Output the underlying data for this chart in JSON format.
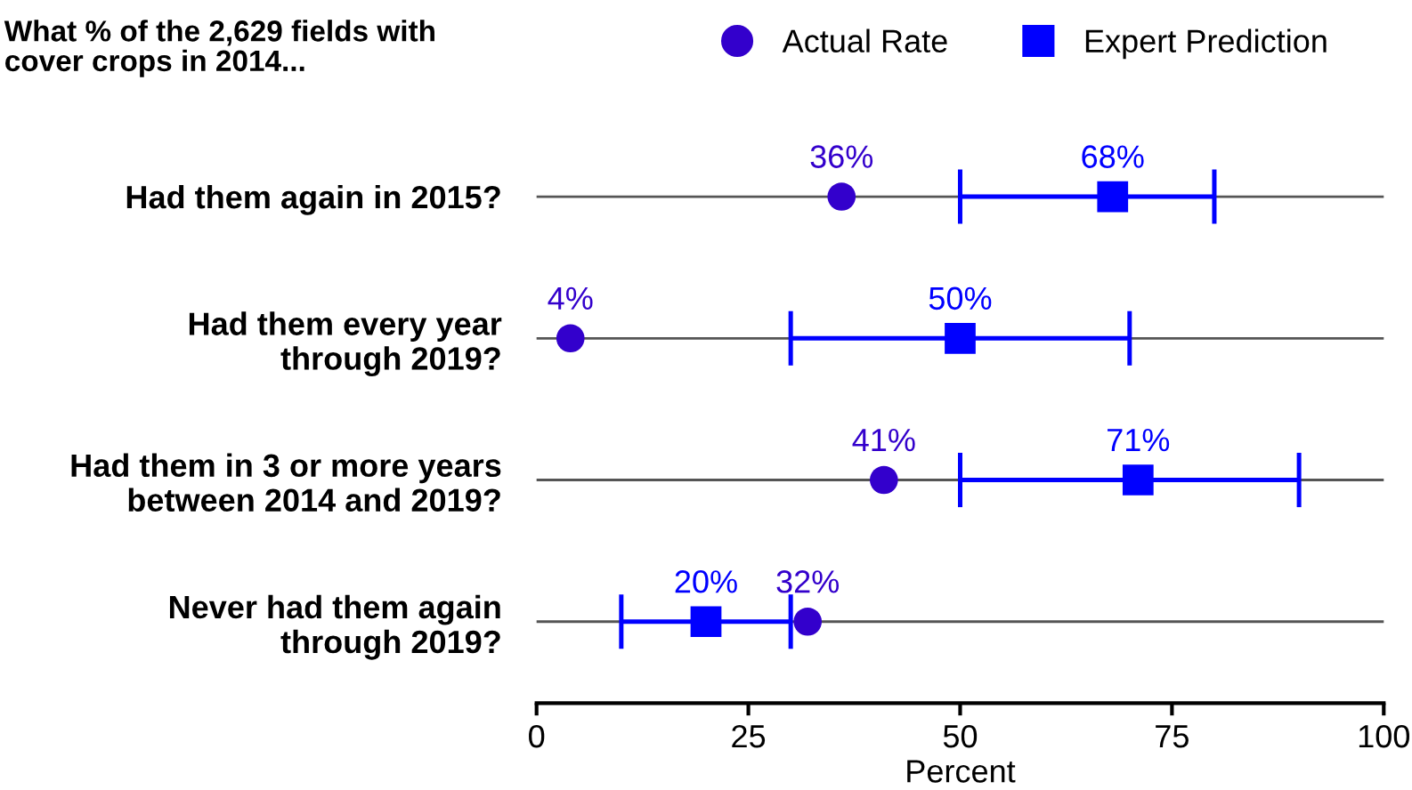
{
  "chart_data": {
    "type": "scatter",
    "orientation": "horizontal",
    "title": "What % of the 2,629 fields with\ncover crops in 2014...",
    "xlabel": "Percent",
    "categories": [
      "Had them again in 2015?",
      "Had them every year\nthrough 2019?",
      "Had them in 3 or more years\nbetween 2014 and 2019?",
      "Never had them again\nthrough 2019?"
    ],
    "series": [
      {
        "name": "Actual Rate",
        "color": "#3300cc",
        "marker": "circle",
        "values": [
          36,
          4,
          41,
          32
        ],
        "value_labels": [
          "36%",
          "4%",
          "41%",
          "32%"
        ]
      },
      {
        "name": "Expert Prediction",
        "color": "#0000ff",
        "marker": "square",
        "values": [
          68,
          50,
          71,
          20
        ],
        "value_labels": [
          "68%",
          "50%",
          "71%",
          "20%"
        ],
        "errors": [
          [
            50,
            80
          ],
          [
            30,
            70
          ],
          [
            50,
            90
          ],
          [
            10,
            30
          ]
        ]
      }
    ],
    "xlim": [
      0,
      100
    ],
    "xticks": [
      0,
      25,
      50,
      75,
      100
    ],
    "grid": "y",
    "legend": "top"
  }
}
